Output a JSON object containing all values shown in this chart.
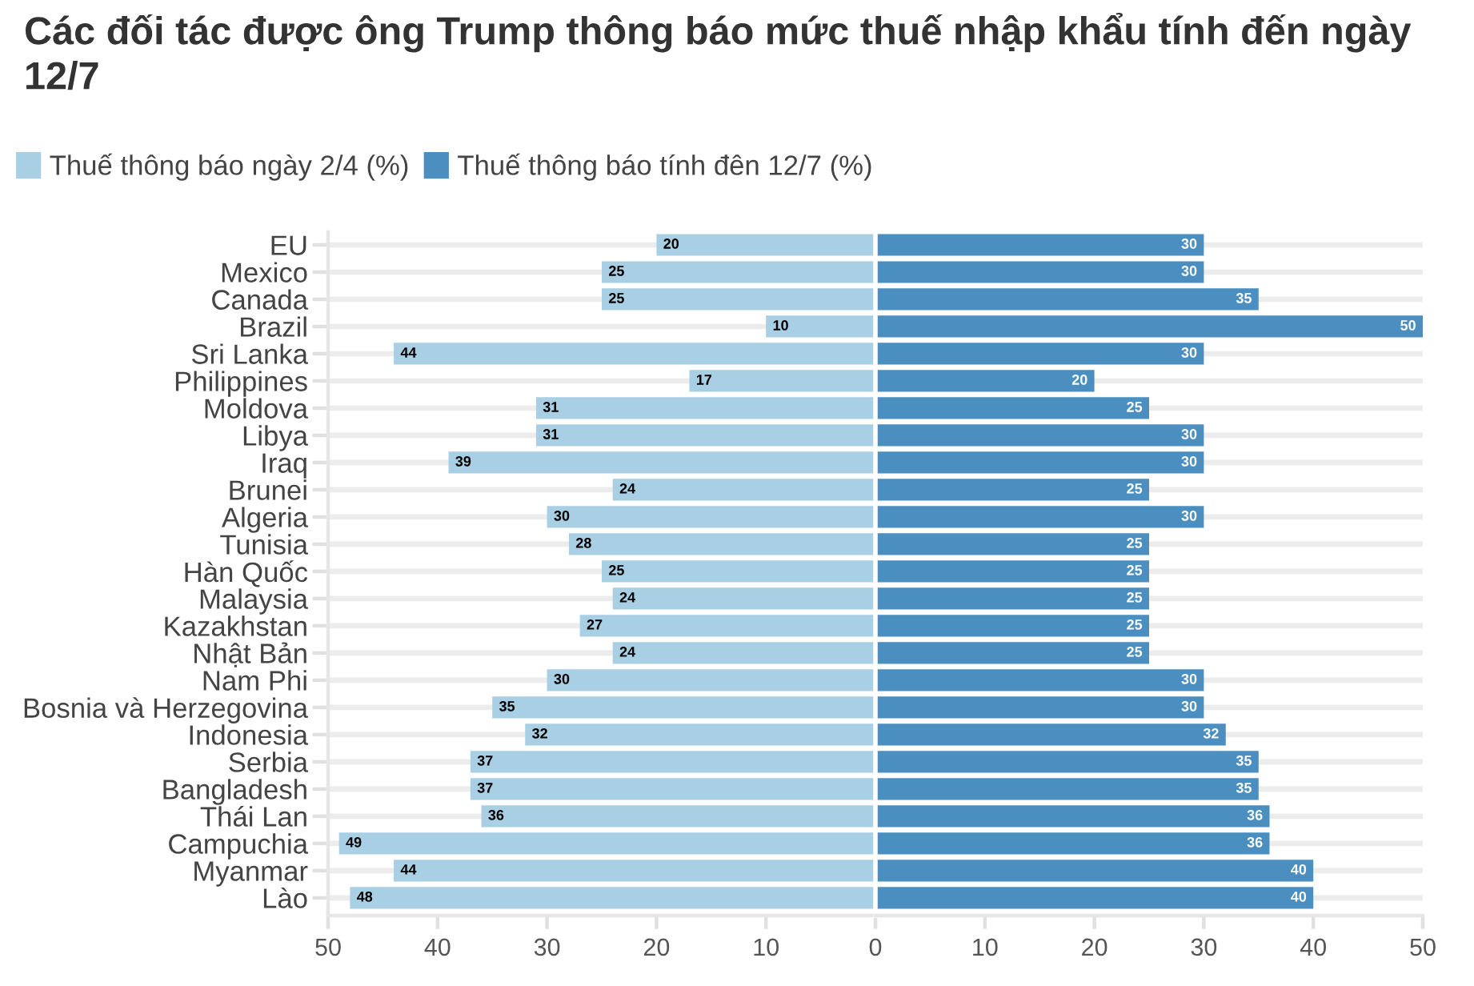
{
  "chart_data": [
    {
      "type": "bar",
      "orientation": "horizontal",
      "title": "Các đối tác được ông Trump thông báo mức thuế nhập khẩu tính đến ngày 12/7",
      "categories": [
        "EU",
        "Mexico",
        "Canada",
        "Brazil",
        "Sri Lanka",
        "Philippines",
        "Moldova",
        "Libya",
        "Iraq",
        "Brunei",
        "Algeria",
        "Tunisia",
        "Hàn Quốc",
        "Malaysia",
        "Kazakhstan",
        "Nhật Bản",
        "Nam Phi",
        "Bosnia và Herzegovina",
        "Indonesia",
        "Serbia",
        "Bangladesh",
        "Thái Lan",
        "Campuchia",
        "Myanmar",
        "Lào"
      ],
      "series": [
        {
          "name": "Thuế thông báo ngày 2/4 (%)",
          "color": "#a9cfe4",
          "values": [
            20,
            25,
            25,
            10,
            44,
            17,
            31,
            31,
            39,
            24,
            30,
            28,
            25,
            24,
            27,
            24,
            30,
            35,
            32,
            37,
            37,
            36,
            49,
            44,
            48
          ]
        }
      ],
      "xlim": [
        50,
        0
      ],
      "xticks": [
        50,
        40,
        30,
        20,
        10
      ],
      "grid": "y",
      "legend": "top left",
      "data_labels": true
    },
    {
      "type": "bar",
      "orientation": "horizontal",
      "categories": [
        null,
        null,
        null,
        null,
        null,
        null,
        null,
        null,
        null,
        null,
        null,
        null,
        null,
        null,
        null,
        null,
        null,
        null,
        null,
        null,
        null,
        null,
        null,
        null,
        null
      ],
      "series": [
        {
          "name": "Thuế thông báo tính đên 12/7 (%)",
          "color": "#4a8fc0",
          "values": [
            30,
            30,
            35,
            50,
            30,
            20,
            25,
            30,
            30,
            25,
            30,
            25,
            25,
            25,
            25,
            25,
            30,
            30,
            32,
            35,
            35,
            36,
            36,
            40,
            40
          ]
        }
      ],
      "xlim": [
        0,
        50
      ],
      "xticks": [
        0,
        10,
        20,
        30,
        40,
        50
      ],
      "grid": "y",
      "legend": "top left",
      "data_labels": true,
      "tick_labels": "x"
    }
  ]
}
